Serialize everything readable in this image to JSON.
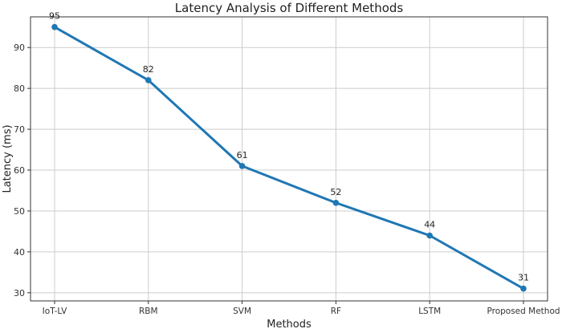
{
  "chart_data": {
    "type": "line",
    "title": "Latency Analysis of Different Methods",
    "xlabel": "Methods",
    "ylabel": "Latency (ms)",
    "categories": [
      "IoT-LV",
      "RBM",
      "SVM",
      "RF",
      "LSTM",
      "Proposed Method"
    ],
    "series": [
      {
        "values": [
          95,
          82,
          61,
          52,
          44,
          31
        ],
        "color": "#1f77b4",
        "marker": "circle"
      }
    ],
    "data_labels": [
      "95",
      "82",
      "61",
      "52",
      "44",
      "31"
    ],
    "yticks": [
      30,
      40,
      50,
      60,
      70,
      80,
      90
    ],
    "ylim": [
      28,
      97.5
    ],
    "grid": true,
    "legend": "none"
  }
}
